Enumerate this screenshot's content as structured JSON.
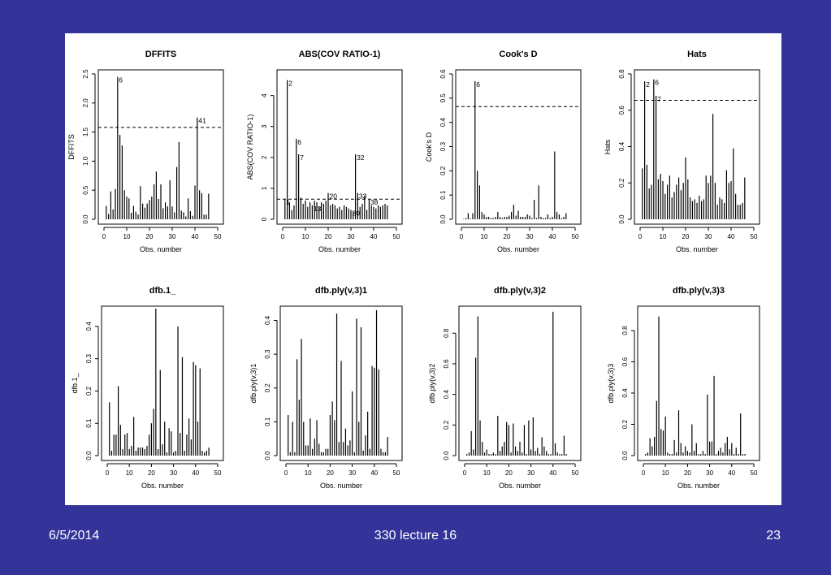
{
  "slide": {
    "background": "#333399",
    "footer": {
      "date": "6/5/2014",
      "title": "330 lecture 16",
      "page": "23"
    }
  },
  "chart_data": [
    {
      "type": "bar",
      "title": "DFFITS",
      "xlabel": "Obs. number",
      "ylabel": "DFFITS",
      "xlim": [
        0,
        50
      ],
      "ylim": [
        0,
        2.5
      ],
      "xticks": [
        0,
        10,
        20,
        30,
        40,
        50
      ],
      "yticks": [
        0,
        0.5,
        1,
        1.5,
        2,
        2.5
      ],
      "ytick_labels": [
        "0.0",
        "0.5",
        "1.0",
        "1.5",
        "2.0",
        "2.5"
      ],
      "cutoff": 1.58,
      "values": [
        0.23,
        0.09,
        0.48,
        0.17,
        0.52,
        2.45,
        1.45,
        1.27,
        0.5,
        0.39,
        0.36,
        0.11,
        0.23,
        0.13,
        0.08,
        0.57,
        0.27,
        0.2,
        0.27,
        0.33,
        0.39,
        0.6,
        0.82,
        0.35,
        0.6,
        0.19,
        0.29,
        0.22,
        0.67,
        0.22,
        0.12,
        0.9,
        1.33,
        0.15,
        0.12,
        0.05,
        0.36,
        0.14,
        0.06,
        0.58,
        1.75,
        0.5,
        0.45,
        0.08,
        0.08,
        0.44
      ],
      "point_labels": [
        {
          "obs": 6,
          "label": "6"
        },
        {
          "obs": 41,
          "label": "41"
        }
      ]
    },
    {
      "type": "bar",
      "title": "ABS(COV RATIO-1)",
      "xlabel": "Obs. number",
      "ylabel": "ABS(COV RATIO-1)",
      "xlim": [
        0,
        50
      ],
      "ylim": [
        0,
        4.7
      ],
      "xticks": [
        0,
        10,
        20,
        30,
        40,
        50
      ],
      "yticks": [
        0,
        1,
        2,
        3,
        4
      ],
      "ytick_labels": [
        "0",
        "1",
        "2",
        "3",
        "4"
      ],
      "cutoff": 0.65,
      "values": [
        0.65,
        4.5,
        0.55,
        0.3,
        0.45,
        2.6,
        2.1,
        0.7,
        0.5,
        0.6,
        0.4,
        0.55,
        0.45,
        0.6,
        0.55,
        0.4,
        0.55,
        0.5,
        0.6,
        0.85,
        0.45,
        0.5,
        0.45,
        0.35,
        0.4,
        0.3,
        0.45,
        0.4,
        0.35,
        0.3,
        0.25,
        2.1,
        0.85,
        0.4,
        0.5,
        0.75,
        0.3,
        0.65,
        0.45,
        0.4,
        0.35,
        0.45,
        0.4,
        0.45,
        0.5,
        0.45
      ],
      "point_labels": [
        {
          "obs": 1,
          "label": "1"
        },
        {
          "obs": 2,
          "label": "2"
        },
        {
          "obs": 6,
          "label": "6"
        },
        {
          "obs": 7,
          "label": "7"
        },
        {
          "obs": 13,
          "label": "13"
        },
        {
          "obs": 20,
          "label": "20"
        },
        {
          "obs": 30,
          "label": "30"
        },
        {
          "obs": 32,
          "label": "32"
        },
        {
          "obs": 33,
          "label": "33"
        },
        {
          "obs": 38,
          "label": "38"
        }
      ]
    },
    {
      "type": "bar",
      "title": "Cook's D",
      "xlabel": "Obs. number",
      "ylabel": "Cook's D",
      "xlim": [
        0,
        50
      ],
      "ylim": [
        0,
        0.6
      ],
      "xticks": [
        0,
        10,
        20,
        30,
        40,
        50
      ],
      "yticks": [
        0,
        0.1,
        0.2,
        0.3,
        0.4,
        0.5,
        0.6
      ],
      "ytick_labels": [
        "0.0",
        "0.1",
        "0.2",
        "0.3",
        "0.4",
        "0.5",
        "0.6"
      ],
      "cutoff": 0.465,
      "values": [
        0.002,
        0.005,
        0.025,
        0.003,
        0.025,
        0.57,
        0.2,
        0.14,
        0.03,
        0.02,
        0.01,
        0.01,
        0.005,
        0.005,
        0.01,
        0.03,
        0.01,
        0.005,
        0.01,
        0.01,
        0.015,
        0.03,
        0.06,
        0.015,
        0.035,
        0.01,
        0.01,
        0.01,
        0.02,
        0.015,
        0.005,
        0.08,
        0.005,
        0.14,
        0.01,
        0.005,
        0.005,
        0.02,
        0.005,
        0.01,
        0.28,
        0.03,
        0.02,
        0.005,
        0.01,
        0.025
      ],
      "point_labels": [
        {
          "obs": 6,
          "label": "6"
        }
      ]
    },
    {
      "type": "bar",
      "title": "Hats",
      "xlabel": "Obs. number",
      "ylabel": "Hats",
      "xlim": [
        0,
        50
      ],
      "ylim": [
        0,
        0.8
      ],
      "xticks": [
        0,
        10,
        20,
        30,
        40,
        50
      ],
      "yticks": [
        0,
        0.2,
        0.4,
        0.6,
        0.8
      ],
      "ytick_labels": [
        "0.0",
        "0.2",
        "0.4",
        "0.6",
        "0.8"
      ],
      "cutoff": 0.655,
      "values": [
        0.28,
        0.76,
        0.3,
        0.17,
        0.19,
        0.77,
        0.68,
        0.22,
        0.25,
        0.21,
        0.14,
        0.19,
        0.24,
        0.12,
        0.15,
        0.19,
        0.23,
        0.16,
        0.2,
        0.34,
        0.22,
        0.12,
        0.1,
        0.11,
        0.09,
        0.13,
        0.1,
        0.11,
        0.24,
        0.2,
        0.24,
        0.58,
        0.2,
        0.08,
        0.12,
        0.11,
        0.09,
        0.27,
        0.2,
        0.21,
        0.39,
        0.14,
        0.08,
        0.08,
        0.09,
        0.23
      ],
      "point_labels": [
        {
          "obs": 2,
          "label": "2"
        },
        {
          "obs": 6,
          "label": "6"
        },
        {
          "obs": 7,
          "label": "7"
        }
      ]
    },
    {
      "type": "bar",
      "title": "dfb.1_",
      "xlabel": "Obs. number",
      "ylabel": "dfb.1_",
      "xlim": [
        0,
        50
      ],
      "ylim": [
        0,
        0.45
      ],
      "xticks": [
        0,
        10,
        20,
        30,
        40,
        50
      ],
      "yticks": [
        0,
        0.1,
        0.2,
        0.3,
        0.4
      ],
      "ytick_labels": [
        "0.0",
        "0.1",
        "0.2",
        "0.3",
        "0.4"
      ],
      "values": [
        0.165,
        0.015,
        0.065,
        0.065,
        0.215,
        0.095,
        0.02,
        0.065,
        0.07,
        0.02,
        0.03,
        0.12,
        0.015,
        0.025,
        0.025,
        0.025,
        0.02,
        0.03,
        0.065,
        0.1,
        0.145,
        0.455,
        0.02,
        0.265,
        0.035,
        0.105,
        0.01,
        0.085,
        0.075,
        0.01,
        0.015,
        0.4,
        0.07,
        0.305,
        0.015,
        0.065,
        0.115,
        0.05,
        0.29,
        0.28,
        0.105,
        0.27,
        0.015,
        0.01,
        0.015,
        0.025
      ]
    },
    {
      "type": "bar",
      "title": "dfb.ply(v,3)1",
      "xlabel": "Obs. number",
      "ylabel": "dfb.ply(v,3)1",
      "xlim": [
        0,
        50
      ],
      "ylim": [
        0,
        0.43
      ],
      "xticks": [
        0,
        10,
        20,
        30,
        40,
        50
      ],
      "yticks": [
        0,
        0.1,
        0.2,
        0.3,
        0.4
      ],
      "ytick_labels": [
        "0.0",
        "0.1",
        "0.2",
        "0.3",
        "0.4"
      ],
      "values": [
        0.12,
        0.01,
        0.1,
        0.01,
        0.285,
        0.165,
        0.345,
        0.1,
        0.03,
        0.03,
        0.11,
        0.02,
        0.05,
        0.105,
        0.035,
        0.01,
        0.01,
        0.02,
        0.02,
        0.12,
        0.16,
        0.105,
        0.42,
        0.04,
        0.28,
        0.04,
        0.08,
        0.03,
        0.045,
        0.19,
        0.01,
        0.405,
        0.1,
        0.38,
        0.015,
        0.06,
        0.13,
        0.02,
        0.265,
        0.26,
        0.43,
        0.255,
        0.02,
        0.01,
        0.01,
        0.055
      ]
    },
    {
      "type": "bar",
      "title": "dfb.ply(v,3)2",
      "xlabel": "Obs. number",
      "ylabel": "dfb.ply(v,3)2",
      "xlim": [
        0,
        50
      ],
      "ylim": [
        0,
        0.95
      ],
      "xticks": [
        0,
        10,
        20,
        30,
        40,
        50
      ],
      "yticks": [
        0,
        0.2,
        0.4,
        0.6,
        0.8
      ],
      "ytick_labels": [
        "0.0",
        "0.2",
        "0.4",
        "0.6",
        "0.8"
      ],
      "values": [
        0.01,
        0.02,
        0.16,
        0.04,
        0.64,
        0.91,
        0.23,
        0.09,
        0.02,
        0.04,
        0.01,
        0.01,
        0.02,
        0.01,
        0.26,
        0.03,
        0.06,
        0.09,
        0.22,
        0.2,
        0.02,
        0.21,
        0.06,
        0.03,
        0.09,
        0.02,
        0.2,
        0.01,
        0.23,
        0.04,
        0.25,
        0.03,
        0.05,
        0.01,
        0.12,
        0.06,
        0.03,
        0.01,
        0.01,
        0.94,
        0.08,
        0.02,
        0.01,
        0.01,
        0.13,
        0.01
      ]
    },
    {
      "type": "bar",
      "title": "dfb.ply(v,3)3",
      "xlabel": "Obs. number",
      "ylabel": "dfb.ply(v,3)3",
      "xlim": [
        0,
        50
      ],
      "ylim": [
        0,
        0.93
      ],
      "xticks": [
        0,
        10,
        20,
        30,
        40,
        50
      ],
      "yticks": [
        0,
        0.2,
        0.4,
        0.6,
        0.8
      ],
      "ytick_labels": [
        "0.0",
        "0.2",
        "0.4",
        "0.6",
        "0.8"
      ],
      "values": [
        0.01,
        0.02,
        0.11,
        0.06,
        0.12,
        0.35,
        0.89,
        0.17,
        0.16,
        0.25,
        0.02,
        0.01,
        0.01,
        0.1,
        0.02,
        0.29,
        0.08,
        0.02,
        0.06,
        0.03,
        0.02,
        0.2,
        0.03,
        0.08,
        0.01,
        0.01,
        0.03,
        0.01,
        0.39,
        0.09,
        0.09,
        0.51,
        0.01,
        0.03,
        0.05,
        0.02,
        0.08,
        0.12,
        0.04,
        0.08,
        0.01,
        0.05,
        0.01,
        0.27,
        0.01,
        0.01
      ]
    }
  ]
}
